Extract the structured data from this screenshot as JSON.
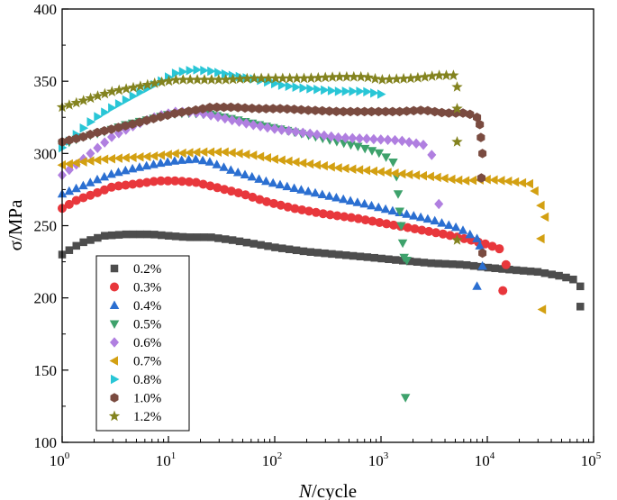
{
  "chart_data": {
    "type": "scatter",
    "title": "",
    "xlabel_italic": "N",
    "xlabel_rest": "/cycle",
    "ylabel": "σ/MPa",
    "x_scale": "log",
    "xlim": [
      1,
      100000
    ],
    "ylim": [
      100,
      400
    ],
    "x_ticks": [
      {
        "value": 1,
        "base": "10",
        "exp": "0"
      },
      {
        "value": 10,
        "base": "10",
        "exp": "1"
      },
      {
        "value": 100,
        "base": "10",
        "exp": "2"
      },
      {
        "value": 1000,
        "base": "10",
        "exp": "3"
      },
      {
        "value": 10000,
        "base": "10",
        "exp": "4"
      },
      {
        "value": 100000,
        "base": "10",
        "exp": "5"
      }
    ],
    "y_ticks": [
      {
        "value": 100,
        "label": "100"
      },
      {
        "value": 150,
        "label": "150"
      },
      {
        "value": 200,
        "label": "200"
      },
      {
        "value": 250,
        "label": "250"
      },
      {
        "value": 300,
        "label": "300"
      },
      {
        "value": 350,
        "label": "350"
      },
      {
        "value": 400,
        "label": "400"
      }
    ],
    "legend_position": "bottom-left",
    "series": [
      {
        "name": "0.2%",
        "color": "#4d4d4d",
        "marker": "square",
        "key": [
          [
            1,
            230
          ],
          [
            1.5,
            238
          ],
          [
            2.5,
            243
          ],
          [
            4,
            244
          ],
          [
            7,
            244
          ],
          [
            10,
            243
          ],
          [
            15,
            242
          ],
          [
            25,
            242
          ],
          [
            40,
            240
          ],
          [
            70,
            237
          ],
          [
            100,
            235
          ],
          [
            200,
            232
          ],
          [
            400,
            230
          ],
          [
            800,
            228
          ],
          [
            1500,
            226
          ],
          [
            3000,
            224
          ],
          [
            6000,
            223
          ],
          [
            10000,
            221
          ],
          [
            20000,
            219
          ],
          [
            30000,
            218
          ],
          [
            50000,
            215
          ],
          [
            70000,
            212
          ],
          [
            75000,
            208
          ]
        ],
        "outliers": [
          [
            75000,
            194
          ]
        ]
      },
      {
        "name": "0.3%",
        "color": "#e8373c",
        "marker": "circle",
        "key": [
          [
            1,
            262
          ],
          [
            1.4,
            268
          ],
          [
            2,
            272
          ],
          [
            3,
            277
          ],
          [
            5,
            279
          ],
          [
            8,
            281
          ],
          [
            12,
            281
          ],
          [
            18,
            280
          ],
          [
            30,
            276
          ],
          [
            50,
            272
          ],
          [
            80,
            267
          ],
          [
            150,
            262
          ],
          [
            300,
            258
          ],
          [
            600,
            255
          ],
          [
            1000,
            252
          ],
          [
            2000,
            248
          ],
          [
            4000,
            244
          ],
          [
            7000,
            240
          ],
          [
            10000,
            237
          ],
          [
            13000,
            234
          ]
        ],
        "outliers": [
          [
            15000,
            223
          ],
          [
            14000,
            205
          ]
        ]
      },
      {
        "name": "0.4%",
        "color": "#2b6fd1",
        "marker": "triangle-up",
        "key": [
          [
            1,
            272
          ],
          [
            1.5,
            277
          ],
          [
            2,
            281
          ],
          [
            3,
            286
          ],
          [
            5,
            290
          ],
          [
            8,
            293
          ],
          [
            12,
            295
          ],
          [
            18,
            296
          ],
          [
            25,
            294
          ],
          [
            40,
            288
          ],
          [
            80,
            281
          ],
          [
            150,
            276
          ],
          [
            300,
            271
          ],
          [
            700,
            265
          ],
          [
            1500,
            259
          ],
          [
            3000,
            254
          ],
          [
            5500,
            248
          ],
          [
            8000,
            241
          ]
        ],
        "outliers": [
          [
            8500,
            236
          ],
          [
            9000,
            222
          ],
          [
            8000,
            208
          ]
        ]
      },
      {
        "name": "0.5%",
        "color": "#3ea26c",
        "marker": "triangle-down",
        "key": [
          [
            1,
            306
          ],
          [
            1.5,
            311
          ],
          [
            2.5,
            315
          ],
          [
            4,
            320
          ],
          [
            7,
            324
          ],
          [
            10,
            327
          ],
          [
            15,
            328
          ],
          [
            25,
            327
          ],
          [
            40,
            324
          ],
          [
            70,
            320
          ],
          [
            150,
            315
          ],
          [
            300,
            310
          ],
          [
            600,
            305
          ],
          [
            1000,
            300
          ],
          [
            1300,
            294
          ]
        ],
        "outliers": [
          [
            1400,
            284
          ],
          [
            1450,
            272
          ],
          [
            1500,
            260
          ],
          [
            1550,
            250
          ],
          [
            1600,
            238
          ],
          [
            1650,
            228
          ],
          [
            1750,
            226
          ],
          [
            1700,
            131
          ]
        ]
      },
      {
        "name": "0.6%",
        "color": "#b07fe0",
        "marker": "diamond",
        "key": [
          [
            1,
            285
          ],
          [
            1.4,
            293
          ],
          [
            2,
            302
          ],
          [
            3,
            312
          ],
          [
            5,
            320
          ],
          [
            8,
            326
          ],
          [
            12,
            329
          ],
          [
            20,
            328
          ],
          [
            35,
            324
          ],
          [
            60,
            320
          ],
          [
            100,
            317
          ],
          [
            200,
            314
          ],
          [
            400,
            311
          ],
          [
            800,
            310
          ],
          [
            1500,
            309
          ],
          [
            2500,
            306
          ]
        ],
        "outliers": [
          [
            3000,
            299
          ],
          [
            3500,
            265
          ]
        ]
      },
      {
        "name": "0.7%",
        "color": "#d3a012",
        "marker": "triangle-left",
        "key": [
          [
            1,
            292
          ],
          [
            1.5,
            294
          ],
          [
            2.5,
            296
          ],
          [
            4,
            297
          ],
          [
            7,
            298
          ],
          [
            12,
            300
          ],
          [
            20,
            301
          ],
          [
            35,
            301
          ],
          [
            60,
            299
          ],
          [
            100,
            296
          ],
          [
            200,
            293
          ],
          [
            400,
            290
          ],
          [
            800,
            288
          ],
          [
            1500,
            286
          ],
          [
            3000,
            284
          ],
          [
            6000,
            281
          ],
          [
            10000,
            282
          ],
          [
            15000,
            281
          ],
          [
            25000,
            279
          ]
        ],
        "outliers": [
          [
            28000,
            274
          ],
          [
            32000,
            264
          ],
          [
            35000,
            256
          ],
          [
            32000,
            241
          ],
          [
            33000,
            192
          ]
        ]
      },
      {
        "name": "0.8%",
        "color": "#29c6d6",
        "marker": "triangle-right",
        "key": [
          [
            1,
            304
          ],
          [
            1.5,
            316
          ],
          [
            2,
            324
          ],
          [
            3,
            332
          ],
          [
            5,
            341
          ],
          [
            8,
            349
          ],
          [
            12,
            356
          ],
          [
            18,
            358
          ],
          [
            25,
            357
          ],
          [
            40,
            354
          ],
          [
            70,
            351
          ],
          [
            120,
            347
          ],
          [
            200,
            345
          ],
          [
            400,
            343
          ],
          [
            700,
            343
          ],
          [
            1000,
            341
          ]
        ],
        "outliers": []
      },
      {
        "name": "1.0%",
        "color": "#7a4b40",
        "marker": "hexagon",
        "key": [
          [
            1,
            308
          ],
          [
            1.5,
            311
          ],
          [
            2,
            314
          ],
          [
            3,
            317
          ],
          [
            5,
            321
          ],
          [
            8,
            325
          ],
          [
            12,
            328
          ],
          [
            18,
            330
          ],
          [
            25,
            332
          ],
          [
            40,
            332
          ],
          [
            70,
            331
          ],
          [
            120,
            331
          ],
          [
            200,
            330
          ],
          [
            400,
            329
          ],
          [
            800,
            329
          ],
          [
            1500,
            329
          ],
          [
            2500,
            330
          ],
          [
            4000,
            328
          ],
          [
            6000,
            328
          ],
          [
            7000,
            327
          ],
          [
            8000,
            325
          ]
        ],
        "outliers": [
          [
            8500,
            320
          ],
          [
            8700,
            311
          ],
          [
            9000,
            300
          ],
          [
            8800,
            283
          ],
          [
            9000,
            231
          ]
        ]
      },
      {
        "name": "1.2%",
        "color": "#83831f",
        "marker": "star",
        "key": [
          [
            1,
            332
          ],
          [
            1.5,
            336
          ],
          [
            2,
            339
          ],
          [
            3,
            343
          ],
          [
            5,
            346
          ],
          [
            8,
            349
          ],
          [
            12,
            351
          ],
          [
            20,
            351
          ],
          [
            35,
            351
          ],
          [
            60,
            352
          ],
          [
            100,
            352
          ],
          [
            200,
            352
          ],
          [
            400,
            353
          ],
          [
            700,
            353
          ],
          [
            1000,
            351
          ],
          [
            2000,
            352
          ],
          [
            3500,
            354
          ],
          [
            4800,
            354
          ]
        ],
        "outliers": [
          [
            5200,
            346
          ],
          [
            5200,
            331
          ],
          [
            5200,
            308
          ],
          [
            5200,
            240
          ]
        ]
      }
    ]
  }
}
